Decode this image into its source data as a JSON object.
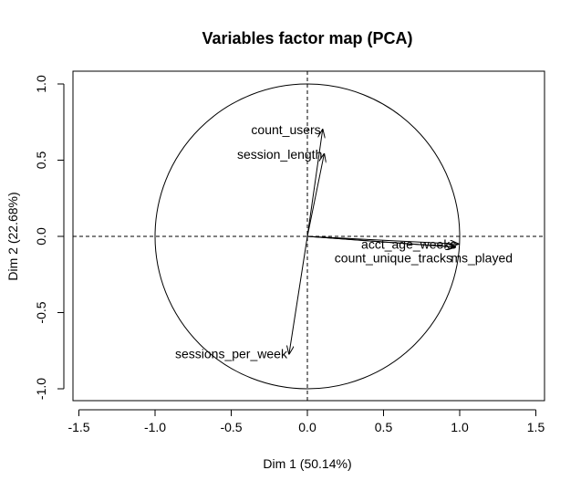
{
  "chart_data": {
    "type": "scatter",
    "subtype": "pca-variables-factor-map",
    "title": "Variables factor map (PCA)",
    "xlabel": "Dim 1 (50.14%)",
    "ylabel": "Dim 2 (22.68%)",
    "xlim": [
      -1.5,
      1.5
    ],
    "ylim": [
      -1.0,
      1.0
    ],
    "x_ticks": [
      -1.5,
      -1.0,
      -0.5,
      0.0,
      0.5,
      1.0,
      1.5
    ],
    "x_tick_labels": [
      "-1.5",
      "-1.0",
      "-0.5",
      "0.0",
      "0.5",
      "1.0",
      "1.5"
    ],
    "y_ticks": [
      -1.0,
      -0.5,
      0.0,
      0.5,
      1.0
    ],
    "y_tick_labels": [
      "-1.0",
      "-0.5",
      "0.0",
      "0.5",
      "1.0"
    ],
    "unit_circle": true,
    "reference_lines": [
      0,
      0
    ],
    "variables": [
      {
        "name": "count_users",
        "x": 0.1,
        "y": 0.7,
        "label_pos": "left"
      },
      {
        "name": "session_length",
        "x": 0.11,
        "y": 0.54,
        "label_pos": "left"
      },
      {
        "name": "acct_age_weeks",
        "x": 0.99,
        "y": -0.05,
        "label_pos": "left"
      },
      {
        "name": "count_unique_tracks",
        "x": 0.97,
        "y": -0.07,
        "label_pos": "below-left"
      },
      {
        "name": "ms_played",
        "x": 0.96,
        "y": -0.07,
        "label_pos": "below-right"
      },
      {
        "name": "sessions_per_week",
        "x": -0.12,
        "y": -0.77,
        "label_pos": "left"
      }
    ]
  }
}
